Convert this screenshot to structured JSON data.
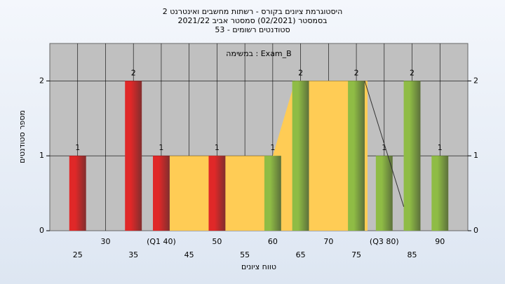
{
  "chart_data": {
    "type": "bar",
    "title": "היסטוגרמת ציונים בקורס - רשתות מחשבים ואינטרנט 2",
    "subtitle": "בסמסטר  (02/2021)  סמסטר אביב 2021/22",
    "subtitle2": "סטודנטים רשומים - 53",
    "annotation": "במשימה : Exam_B",
    "x_label": "טווח ציונים",
    "y_label": "מספר סטודנטים",
    "x": [
      25,
      35,
      40,
      50,
      60,
      65,
      75,
      80,
      85,
      90
    ],
    "values": [
      1,
      2,
      1,
      1,
      1,
      2,
      2,
      1,
      2,
      1
    ],
    "colors": [
      "#e02828",
      "#e02828",
      "#e02828",
      "#e02828",
      "#8fbc45",
      "#8fbc45",
      "#8fbc45",
      "#8fbc45",
      "#8fbc45",
      "#8fbc45"
    ],
    "area": {
      "color": "#ffcc55",
      "x": [
        41.5,
        60,
        64,
        77
      ],
      "y": [
        1,
        1,
        2,
        2
      ]
    },
    "line": {
      "color": "#333333",
      "x": [
        76.5,
        83.5
      ],
      "y": [
        2,
        0.32
      ]
    },
    "xlim": [
      20,
      95
    ],
    "ylim": [
      0,
      2.5
    ],
    "xticks": [
      25,
      30,
      35,
      {
        "value": 40,
        "label": "(Q1 40)"
      },
      45,
      50,
      55,
      60,
      65,
      70,
      75,
      {
        "value": 80,
        "label": "(Q3 80)"
      },
      85,
      90
    ],
    "yticks": [
      0,
      1,
      2
    ],
    "y2ticks": [
      0,
      1,
      2
    ],
    "grid": true
  }
}
